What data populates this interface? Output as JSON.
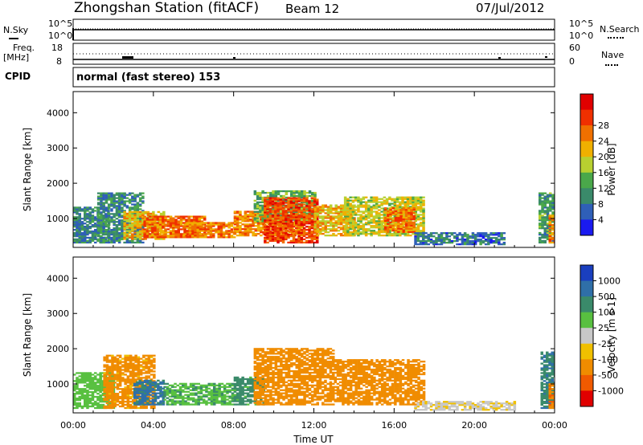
{
  "header": {
    "station": "Zhongshan Station (fitACF)",
    "beam": "Beam 12",
    "date": "07/Jul/2012"
  },
  "summary": {
    "nsky_label": "N.Sky",
    "nsearch_label": "N.Search",
    "freq_label": "Freq.",
    "freq_unit": "[MHz]",
    "nave_label": "Nave",
    "cpid_label": "CPID",
    "cpid_text": "normal (fast stereo) 153",
    "noise_ticks_left": [
      "10^5",
      "10^0"
    ],
    "noise_ticks_right": [
      "10^5",
      "10^0"
    ],
    "freq_ticks": [
      "18",
      "8"
    ],
    "nave_ticks": [
      "60",
      "0"
    ]
  },
  "colors": {
    "frame": "#000000",
    "background": "#ffffff",
    "power_scale": [
      "#1a1af0",
      "#2f5fb8",
      "#3a8a6a",
      "#4aa84a",
      "#b8d030",
      "#f0b000",
      "#f07000",
      "#f03000",
      "#e00000"
    ],
    "velocity_scale": [
      "#1a3fbf",
      "#2f6fa8",
      "#3a8a6a",
      "#58c040",
      "#c8c8c8",
      "#f0c000",
      "#f08c00",
      "#f05a00",
      "#e00000"
    ]
  },
  "chart_data": [
    {
      "type": "heatmap",
      "title": "",
      "parameter": "Power",
      "xlabel": "",
      "ylabel": "Slant Range [km]",
      "colorbar_label": "Power [dB]",
      "colorbar_ticks": [
        "4",
        "8",
        "12",
        "16",
        "20",
        "24",
        "28"
      ],
      "colorbar_range": [
        0,
        32
      ],
      "x_ticks": [
        "00:00",
        "04:00",
        "08:00",
        "12:00",
        "16:00",
        "20:00",
        "00:00"
      ],
      "x_range_hours": [
        0,
        24
      ],
      "y_ticks": [
        "1000",
        "2000",
        "3000",
        "4000"
      ],
      "y_range_km": [
        180,
        4600
      ],
      "regions": [
        {
          "t": [
            0.0,
            1.8
          ],
          "r": [
            300,
            1300
          ],
          "v": 9
        },
        {
          "t": [
            1.2,
            3.5
          ],
          "r": [
            300,
            1700
          ],
          "v": 10
        },
        {
          "t": [
            2.5,
            4.5
          ],
          "r": [
            400,
            1200
          ],
          "v": 21
        },
        {
          "t": [
            3.5,
            6.5
          ],
          "r": [
            450,
            1050
          ],
          "v": 27
        },
        {
          "t": [
            5.5,
            8.0
          ],
          "r": [
            450,
            900
          ],
          "v": 26
        },
        {
          "t": [
            8.0,
            11.5
          ],
          "r": [
            500,
            1200
          ],
          "v": 25
        },
        {
          "t": [
            9.0,
            12.0
          ],
          "r": [
            900,
            1800
          ],
          "v": 14
        },
        {
          "t": [
            9.5,
            12.2
          ],
          "r": [
            300,
            1600
          ],
          "v": 29
        },
        {
          "t": [
            12.0,
            14.0
          ],
          "r": [
            500,
            1400
          ],
          "v": 22
        },
        {
          "t": [
            13.5,
            17.5
          ],
          "r": [
            500,
            1600
          ],
          "v": 19
        },
        {
          "t": [
            15.5,
            17.0
          ],
          "r": [
            600,
            1300
          ],
          "v": 26
        },
        {
          "t": [
            17.0,
            21.5
          ],
          "r": [
            250,
            600
          ],
          "v": 8
        },
        {
          "t": [
            23.2,
            24.0
          ],
          "r": [
            300,
            1700
          ],
          "v": 12
        },
        {
          "t": [
            23.7,
            24.0
          ],
          "r": [
            300,
            1100
          ],
          "v": 25
        }
      ]
    },
    {
      "type": "heatmap",
      "title": "",
      "parameter": "Velocity",
      "xlabel": "Time UT",
      "ylabel": "Slant Range [km]",
      "colorbar_label": "Velocity [m s-1]",
      "colorbar_ticks": [
        "1000",
        "500",
        "100",
        "25",
        "-25",
        "-100",
        "-500",
        "-1000"
      ],
      "colorbar_range": [
        -1200,
        1200
      ],
      "x_ticks": [
        "00:00",
        "04:00",
        "08:00",
        "12:00",
        "16:00",
        "20:00",
        "00:00"
      ],
      "x_range_hours": [
        0,
        24
      ],
      "y_ticks": [
        "1000",
        "2000",
        "3000",
        "4000"
      ],
      "y_range_km": [
        180,
        4600
      ],
      "regions": [
        {
          "t": [
            0.0,
            2.0
          ],
          "r": [
            300,
            1300
          ],
          "v": 60
        },
        {
          "t": [
            1.5,
            4.0
          ],
          "r": [
            300,
            1800
          ],
          "v": -150
        },
        {
          "t": [
            3.0,
            4.5
          ],
          "r": [
            400,
            1100
          ],
          "v": 600
        },
        {
          "t": [
            4.5,
            8.0
          ],
          "r": [
            400,
            1000
          ],
          "v": 80
        },
        {
          "t": [
            8.0,
            9.5
          ],
          "r": [
            400,
            1200
          ],
          "v": 150
        },
        {
          "t": [
            9.0,
            13.0
          ],
          "r": [
            400,
            2000
          ],
          "v": -220
        },
        {
          "t": [
            13.0,
            17.5
          ],
          "r": [
            400,
            1700
          ],
          "v": -250
        },
        {
          "t": [
            17.0,
            22.0
          ],
          "r": [
            250,
            500
          ],
          "v": -20
        },
        {
          "t": [
            23.3,
            24.0
          ],
          "r": [
            300,
            1900
          ],
          "v": 400
        },
        {
          "t": [
            23.7,
            24.0
          ],
          "r": [
            300,
            1000
          ],
          "v": -400
        }
      ]
    }
  ]
}
